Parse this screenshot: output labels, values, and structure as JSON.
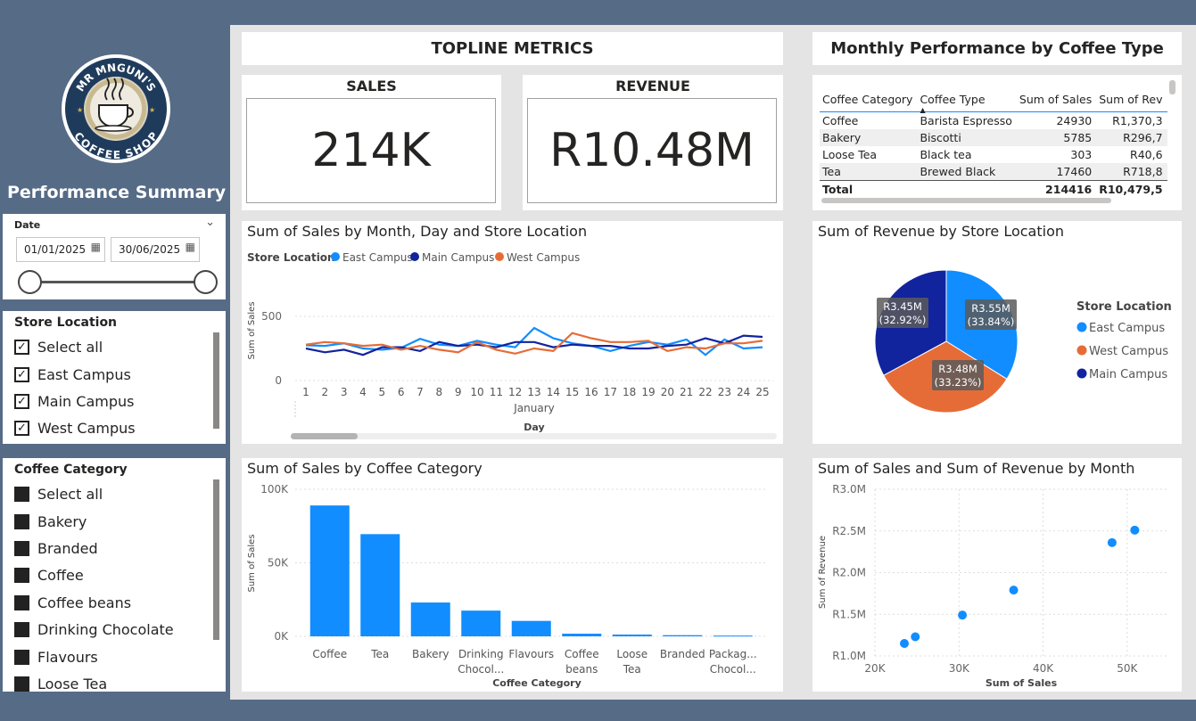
{
  "sidebar": {
    "logo_text_top": "MR MNGUNI'S",
    "logo_text_bottom": "COFFEE SHOP",
    "title": "Performance Summary",
    "date_slicer": {
      "label": "Date",
      "start": "01/01/2025",
      "end": "30/06/2025"
    },
    "store_slicer": {
      "title": "Store Location",
      "items": [
        {
          "label": "Select all",
          "checked": true
        },
        {
          "label": "East Campus",
          "checked": true
        },
        {
          "label": "Main Campus",
          "checked": true
        },
        {
          "label": "West Campus",
          "checked": true
        }
      ]
    },
    "category_slicer": {
      "title": "Coffee Category",
      "items": [
        {
          "label": "Select all"
        },
        {
          "label": "Bakery"
        },
        {
          "label": "Branded"
        },
        {
          "label": "Coffee"
        },
        {
          "label": "Coffee beans"
        },
        {
          "label": "Drinking Chocolate"
        },
        {
          "label": "Flavours"
        },
        {
          "label": "Loose Tea"
        }
      ]
    }
  },
  "topline": {
    "title": "TOPLINE  METRICS",
    "sales_label": "SALES",
    "sales_value": "214K",
    "revenue_label": "REVENUE",
    "revenue_value": "R10.48M"
  },
  "monthly_table": {
    "title": "Monthly Performance by Coffee Type",
    "columns": [
      "Coffee Category",
      "Coffee Type",
      "Sum of Sales",
      "Sum of Rev"
    ],
    "rows": [
      [
        "Coffee",
        "Barista Espresso",
        "24930",
        "R1,370,3"
      ],
      [
        "Bakery",
        "Biscotti",
        "5785",
        "R296,7"
      ],
      [
        "Loose Tea",
        "Black tea",
        "303",
        "R40,6"
      ],
      [
        "Tea",
        "Brewed Black",
        "17460",
        "R718,8"
      ]
    ],
    "total": [
      "Total",
      "",
      "214416",
      "R10,479,5"
    ]
  },
  "colors": {
    "east": "#118dff",
    "main": "#12239e",
    "west": "#e66c37",
    "bar": "#118dff"
  },
  "line_chart": {
    "title": "Sum of Sales by Month, Day and Store Location",
    "legend_title": "Store Location",
    "xlabel": "Day",
    "ylabel": "Sum of Sales",
    "month": "January",
    "chart_data": {
      "type": "line",
      "x": [
        1,
        2,
        3,
        4,
        5,
        6,
        7,
        8,
        9,
        10,
        11,
        12,
        13,
        14,
        15,
        16,
        17,
        18,
        19,
        20,
        21,
        22,
        23,
        24,
        25
      ],
      "ylim": [
        0,
        500
      ],
      "yticks": [
        "0",
        "500"
      ],
      "series": [
        {
          "name": "East Campus",
          "values": [
            275,
            270,
            290,
            250,
            240,
            255,
            325,
            280,
            270,
            310,
            280,
            260,
            410,
            330,
            290,
            270,
            230,
            270,
            300,
            280,
            320,
            200,
            320,
            250,
            260
          ]
        },
        {
          "name": "Main Campus",
          "values": [
            250,
            220,
            240,
            200,
            260,
            260,
            230,
            300,
            270,
            280,
            260,
            300,
            300,
            260,
            280,
            270,
            270,
            250,
            250,
            270,
            280,
            330,
            290,
            350,
            340
          ]
        },
        {
          "name": "West Campus",
          "values": [
            280,
            300,
            290,
            270,
            280,
            240,
            270,
            240,
            220,
            300,
            240,
            210,
            250,
            230,
            370,
            330,
            300,
            300,
            310,
            230,
            260,
            250,
            290,
            290,
            310
          ]
        }
      ]
    }
  },
  "pie_chart": {
    "title": "Sum of Revenue by Store Location",
    "legend_title": "Store Location",
    "chart_data": {
      "type": "pie",
      "slices": [
        {
          "name": "East Campus",
          "value": 3.55,
          "label": "R3.55M",
          "pct": "(33.84%)"
        },
        {
          "name": "West Campus",
          "value": 3.48,
          "label": "R3.48M",
          "pct": "(33.23%)"
        },
        {
          "name": "Main Campus",
          "value": 3.45,
          "label": "R3.45M",
          "pct": "(32.92%)"
        }
      ]
    }
  },
  "bar_chart": {
    "title": "Sum of Sales by Coffee Category",
    "xlabel": "Coffee Category",
    "ylabel": "Sum of Sales",
    "chart_data": {
      "type": "bar",
      "categories": [
        "Coffee",
        "Tea",
        "Bakery",
        "Drinking Chocol...",
        "Flavours",
        "Coffee beans",
        "Loose Tea",
        "Branded",
        "Packag... Chocol..."
      ],
      "values": [
        89000,
        69500,
        23000,
        17500,
        10500,
        1800,
        1200,
        800,
        500
      ],
      "ylim": [
        0,
        100000
      ],
      "yticks": [
        "0K",
        "50K",
        "100K"
      ]
    }
  },
  "scatter_chart": {
    "title": "Sum of Sales and Sum of Revenue by Month",
    "xlabel": "Sum of Sales",
    "ylabel": "Sum of Revenue",
    "chart_data": {
      "type": "scatter",
      "xlim": [
        20000,
        55000
      ],
      "ylim": [
        1000000,
        3000000
      ],
      "xticks": [
        "20K",
        "30K",
        "40K",
        "50K"
      ],
      "yticks": [
        "R1.0M",
        "R1.5M",
        "R2.0M",
        "R2.5M",
        "R3.0M"
      ],
      "points": [
        {
          "x": 23500,
          "y": 1150000
        },
        {
          "x": 24800,
          "y": 1230000
        },
        {
          "x": 30400,
          "y": 1490000
        },
        {
          "x": 36500,
          "y": 1790000
        },
        {
          "x": 48200,
          "y": 2360000
        },
        {
          "x": 50900,
          "y": 2510000
        }
      ]
    }
  }
}
